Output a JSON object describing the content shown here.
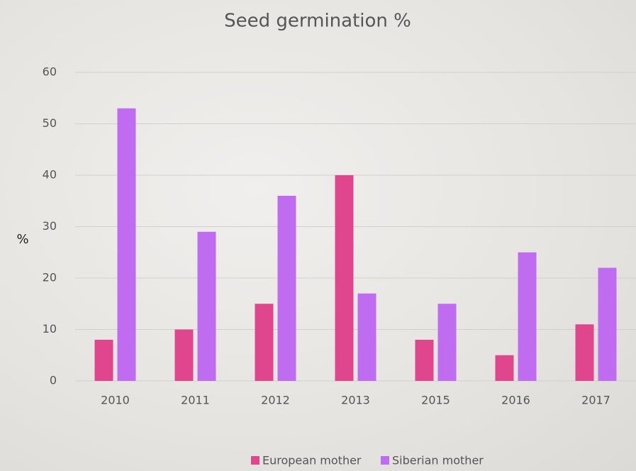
{
  "chart_data": {
    "type": "bar",
    "title": "Seed germination %",
    "y_label": "%",
    "categories": [
      "2010",
      "2011",
      "2012",
      "2013",
      "2015",
      "2016",
      "2017"
    ],
    "series": [
      {
        "name": "European mother",
        "color": "#e0468e",
        "values": [
          8,
          10,
          15,
          40,
          8,
          5,
          11
        ]
      },
      {
        "name": "Siberian mother",
        "color": "#bf6cf0",
        "values": [
          53,
          29,
          36,
          17,
          15,
          25,
          22
        ]
      }
    ],
    "ylim": [
      0,
      60
    ],
    "yticks": [
      0,
      10,
      20,
      30,
      40,
      50,
      60
    ],
    "grid": true,
    "legend": "bottom"
  }
}
